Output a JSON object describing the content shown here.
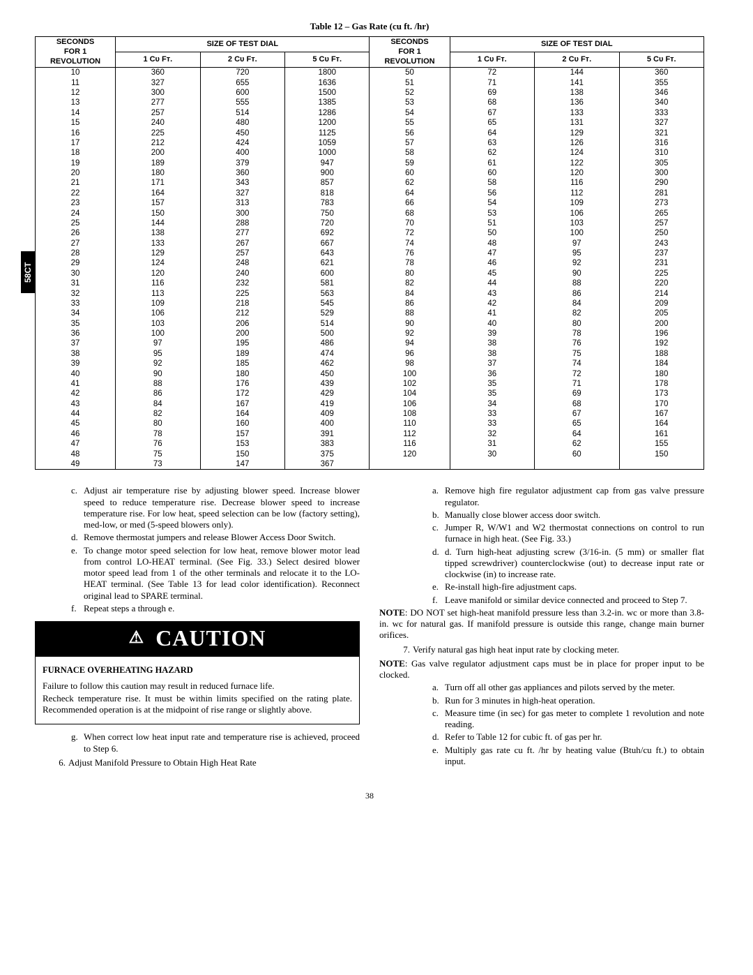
{
  "sideTab": "58CT",
  "pageNumber": "38",
  "table": {
    "title": "Table 12 – Gas Rate (cu ft. /hr)",
    "headers": {
      "secTop": "SECONDS",
      "secMid": "FOR 1",
      "secBot": "REVOLUTION",
      "sizeHead": "SIZE OF TEST DIAL",
      "col1": "1 Cᴜ Fᴛ.",
      "col2": "2 Cᴜ Fᴛ.",
      "col5": "5 Cᴜ Fᴛ."
    },
    "left": [
      [
        "10",
        "360",
        "720",
        "1800"
      ],
      [
        "11",
        "327",
        "655",
        "1636"
      ],
      [
        "12",
        "300",
        "600",
        "1500"
      ],
      [
        "13",
        "277",
        "555",
        "1385"
      ],
      [
        "14",
        "257",
        "514",
        "1286"
      ],
      [
        "15",
        "240",
        "480",
        "1200"
      ],
      [
        "16",
        "225",
        "450",
        "1125"
      ],
      [
        "17",
        "212",
        "424",
        "1059"
      ],
      [
        "18",
        "200",
        "400",
        "1000"
      ],
      [
        "19",
        "189",
        "379",
        "947"
      ],
      [
        "20",
        "180",
        "360",
        "900"
      ],
      [
        "21",
        "171",
        "343",
        "857"
      ],
      [
        "22",
        "164",
        "327",
        "818"
      ],
      [
        "23",
        "157",
        "313",
        "783"
      ],
      [
        "24",
        "150",
        "300",
        "750"
      ],
      [
        "25",
        "144",
        "288",
        "720"
      ],
      [
        "26",
        "138",
        "277",
        "692"
      ],
      [
        "27",
        "133",
        "267",
        "667"
      ],
      [
        "28",
        "129",
        "257",
        "643"
      ],
      [
        "29",
        "124",
        "248",
        "621"
      ],
      [
        "30",
        "120",
        "240",
        "600"
      ],
      [
        "31",
        "116",
        "232",
        "581"
      ],
      [
        "32",
        "113",
        "225",
        "563"
      ],
      [
        "33",
        "109",
        "218",
        "545"
      ],
      [
        "34",
        "106",
        "212",
        "529"
      ],
      [
        "35",
        "103",
        "206",
        "514"
      ],
      [
        "36",
        "100",
        "200",
        "500"
      ],
      [
        "37",
        "97",
        "195",
        "486"
      ],
      [
        "38",
        "95",
        "189",
        "474"
      ],
      [
        "39",
        "92",
        "185",
        "462"
      ],
      [
        "40",
        "90",
        "180",
        "450"
      ],
      [
        "41",
        "88",
        "176",
        "439"
      ],
      [
        "42",
        "86",
        "172",
        "429"
      ],
      [
        "43",
        "84",
        "167",
        "419"
      ],
      [
        "44",
        "82",
        "164",
        "409"
      ],
      [
        "45",
        "80",
        "160",
        "400"
      ],
      [
        "46",
        "78",
        "157",
        "391"
      ],
      [
        "47",
        "76",
        "153",
        "383"
      ],
      [
        "48",
        "75",
        "150",
        "375"
      ],
      [
        "49",
        "73",
        "147",
        "367"
      ]
    ],
    "right": [
      [
        "50",
        "72",
        "144",
        "360"
      ],
      [
        "51",
        "71",
        "141",
        "355"
      ],
      [
        "52",
        "69",
        "138",
        "346"
      ],
      [
        "53",
        "68",
        "136",
        "340"
      ],
      [
        "54",
        "67",
        "133",
        "333"
      ],
      [
        "55",
        "65",
        "131",
        "327"
      ],
      [
        "56",
        "64",
        "129",
        "321"
      ],
      [
        "57",
        "63",
        "126",
        "316"
      ],
      [
        "58",
        "62",
        "124",
        "310"
      ],
      [
        "59",
        "61",
        "122",
        "305"
      ],
      [
        "60",
        "60",
        "120",
        "300"
      ],
      [
        "62",
        "58",
        "116",
        "290"
      ],
      [
        "64",
        "56",
        "112",
        "281"
      ],
      [
        "66",
        "54",
        "109",
        "273"
      ],
      [
        "68",
        "53",
        "106",
        "265"
      ],
      [
        "70",
        "51",
        "103",
        "257"
      ],
      [
        "72",
        "50",
        "100",
        "250"
      ],
      [
        "74",
        "48",
        "97",
        "243"
      ],
      [
        "76",
        "47",
        "95",
        "237"
      ],
      [
        "78",
        "46",
        "92",
        "231"
      ],
      [
        "80",
        "45",
        "90",
        "225"
      ],
      [
        "82",
        "44",
        "88",
        "220"
      ],
      [
        "84",
        "43",
        "86",
        "214"
      ],
      [
        "86",
        "42",
        "84",
        "209"
      ],
      [
        "88",
        "41",
        "82",
        "205"
      ],
      [
        "90",
        "40",
        "80",
        "200"
      ],
      [
        "92",
        "39",
        "78",
        "196"
      ],
      [
        "94",
        "38",
        "76",
        "192"
      ],
      [
        "96",
        "38",
        "75",
        "188"
      ],
      [
        "98",
        "37",
        "74",
        "184"
      ],
      [
        "100",
        "36",
        "72",
        "180"
      ],
      [
        "102",
        "35",
        "71",
        "178"
      ],
      [
        "104",
        "35",
        "69",
        "173"
      ],
      [
        "106",
        "34",
        "68",
        "170"
      ],
      [
        "108",
        "33",
        "67",
        "167"
      ],
      [
        "110",
        "33",
        "65",
        "164"
      ],
      [
        "112",
        "32",
        "64",
        "161"
      ],
      [
        "116",
        "31",
        "62",
        "155"
      ],
      [
        "120",
        "30",
        "60",
        "150"
      ],
      [
        "",
        "",
        "",
        ""
      ]
    ]
  },
  "caution": {
    "label": "CAUTION",
    "hazard": "FURNACE OVERHEATING HAZARD",
    "body1": "Failure to follow this caution may result in reduced furnace life.",
    "body2": "Recheck temperature rise. It must be within limits specified on the rating plate. Recommended operation is at the midpoint of rise range or slightly above."
  },
  "leftPre": [
    {
      "type": "letter",
      "indent": "indent1",
      "lbl": "c.",
      "text": "Adjust air temperature rise by adjusting blower speed. Increase blower speed to reduce temperature rise. Decrease blower speed to increase temperature rise. For low heat, speed selection can be low (factory setting), med-low, or med (5-speed blowers only)."
    },
    {
      "type": "letter",
      "indent": "indent1",
      "lbl": "d.",
      "text": "Remove thermostat jumpers and release Blower Access Door Switch."
    },
    {
      "type": "letter",
      "indent": "indent1",
      "lbl": "e.",
      "text": "To change motor speed selection for low heat, remove blower motor lead from control LO-HEAT terminal. (See Fig. 33.) Select desired blower motor speed lead from 1 of the other terminals and relocate it to the LO-HEAT terminal. (See Table 13 for lead color identification). Reconnect original lead to SPARE terminal."
    },
    {
      "type": "letter",
      "indent": "indent1",
      "lbl": "f.",
      "text": "Repeat steps a through e."
    }
  ],
  "leftPost": [
    {
      "type": "letter",
      "indent": "indent1",
      "lbl": "g.",
      "text": "When correct low heat input rate and temperature rise is achieved, proceed to Step 6."
    },
    {
      "type": "num",
      "indent": "indent2",
      "lbl": "6.",
      "text": "Adjust Manifold Pressure to Obtain High Heat Rate"
    }
  ],
  "rightCol": [
    {
      "type": "letter",
      "indent": "indent3",
      "lbl": "a.",
      "text": "Remove high fire regulator adjustment cap from gas valve pressure regulator."
    },
    {
      "type": "letter",
      "indent": "indent3",
      "lbl": "b.",
      "text": "Manually close blower access door switch."
    },
    {
      "type": "letter",
      "indent": "indent3",
      "lbl": "c.",
      "text": "Jumper R, W/W1 and W2 thermostat connections on control to run furnace in high heat. (See Fig. 33.)"
    },
    {
      "type": "letter",
      "indent": "indent3",
      "lbl": "d.",
      "text": "d. Turn high-heat adjusting screw (3/16-in. (5 mm) or smaller flat tipped screwdriver) counterclockwise (out) to decrease input rate or clockwise (in) to increase rate."
    },
    {
      "type": "letter",
      "indent": "indent3",
      "lbl": "e.",
      "text": "Re-install high-fire adjustment caps."
    },
    {
      "type": "letter",
      "indent": "indent3",
      "lbl": "f.",
      "text": "Leave manifold or similar device connected and proceed to Step 7."
    },
    {
      "type": "note",
      "bold": "NOTE",
      "text": ": DO NOT set high-heat manifold pressure less than 3.2-in. wc or more than 3.8-in. wc for natural gas. If manifold pressure is outside this range, change main burner orifices."
    },
    {
      "type": "num",
      "indent": "indent2",
      "lbl": "7.",
      "text": "Verify natural gas high heat input rate by clocking meter."
    },
    {
      "type": "note",
      "bold": "NOTE",
      "text": ": Gas valve regulator adjustment caps must be in place for proper input to be clocked."
    },
    {
      "type": "letter",
      "indent": "indent3",
      "lbl": "a.",
      "text": "Turn off all other gas appliances and pilots served by the meter."
    },
    {
      "type": "letter",
      "indent": "indent3",
      "lbl": "b.",
      "text": "Run for 3 minutes in high-heat operation."
    },
    {
      "type": "letter",
      "indent": "indent3",
      "lbl": "c.",
      "text": "Measure time (in sec) for gas meter to complete 1 revolution and note reading."
    },
    {
      "type": "letter",
      "indent": "indent3",
      "lbl": "d.",
      "text": "Refer to Table 12 for cubic ft.  of gas per hr."
    },
    {
      "type": "letter",
      "indent": "indent3",
      "lbl": "e.",
      "text": "Multiply gas rate cu ft. /hr by heating value (Btuh/cu ft.) to obtain input."
    }
  ]
}
